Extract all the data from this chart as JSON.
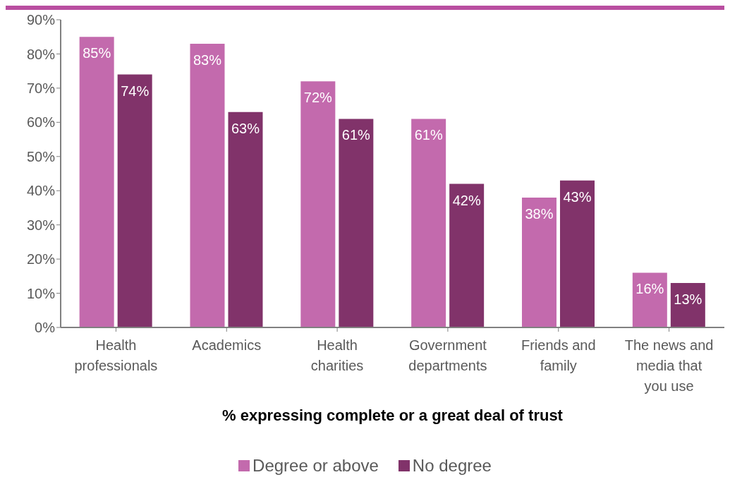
{
  "chart_data": {
    "type": "bar",
    "xlabel": "% expressing complete or a great deal of trust",
    "categories": [
      "Health professionals",
      "Academics",
      "Health charities",
      "Government departments",
      "Friends and family",
      "The news and media that you use"
    ],
    "series": [
      {
        "name": "Degree or above",
        "color": "#c36aad",
        "values": [
          85,
          83,
          72,
          61,
          38,
          16
        ],
        "value_labels": [
          "85%",
          "83%",
          "72%",
          "61%",
          "38%",
          "16%"
        ]
      },
      {
        "name": "No degree",
        "color": "#81336a",
        "values": [
          74,
          63,
          61,
          42,
          43,
          13
        ],
        "value_labels": [
          "74%",
          "63%",
          "61%",
          "42%",
          "43%",
          "13%"
        ]
      }
    ],
    "ylim": [
      0,
      90
    ],
    "yticks": [
      {
        "value": 0,
        "label": "0%"
      },
      {
        "value": 10,
        "label": "10%"
      },
      {
        "value": 20,
        "label": "20%"
      },
      {
        "value": 30,
        "label": "30%"
      },
      {
        "value": 40,
        "label": "40%"
      },
      {
        "value": 50,
        "label": "50%"
      },
      {
        "value": 60,
        "label": "60%"
      },
      {
        "value": 70,
        "label": "70%"
      },
      {
        "value": 80,
        "label": "80%"
      },
      {
        "value": 90,
        "label": "90%"
      }
    ],
    "grid": false,
    "legend": "bottom"
  }
}
